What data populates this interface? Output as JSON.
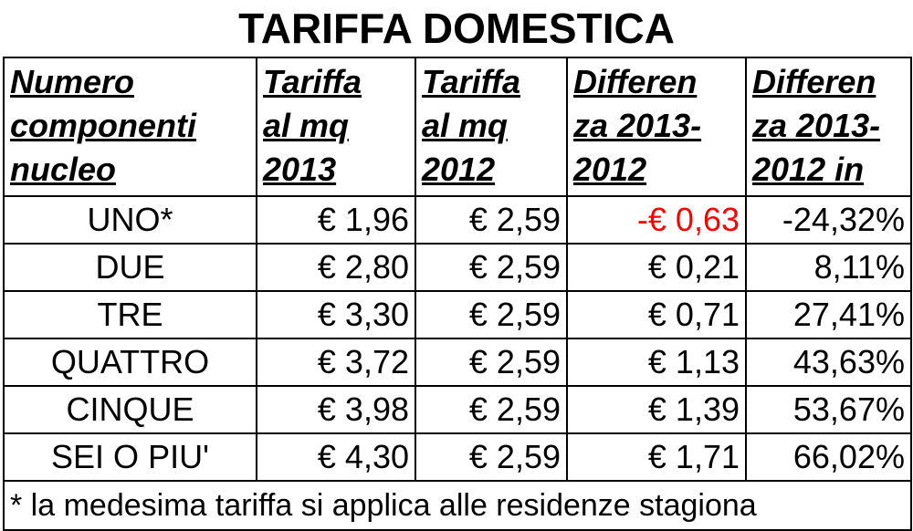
{
  "title": "TARIFFA DOMESTICA",
  "headers": [
    [
      "Numero",
      "componenti",
      "nucleo"
    ],
    [
      "Tariffa",
      "al mq",
      "2013"
    ],
    [
      "Tariffa",
      "al mq",
      "2012"
    ],
    [
      "Differen",
      "za 2013-",
      "2012"
    ],
    [
      "Differen",
      "za 2013-",
      "2012 in"
    ]
  ],
  "rows": [
    {
      "label": "UNO*",
      "t2013": "€ 1,96",
      "t2012": "€ 2,59",
      "diff": "-€ 0,63",
      "pct": "-24,32%",
      "negative": true
    },
    {
      "label": "DUE",
      "t2013": "€ 2,80",
      "t2012": "€ 2,59",
      "diff": "€ 0,21",
      "pct": "8,11%",
      "negative": false
    },
    {
      "label": "TRE",
      "t2013": "€ 3,30",
      "t2012": "€ 2,59",
      "diff": "€ 0,71",
      "pct": "27,41%",
      "negative": false
    },
    {
      "label": "QUATTRO",
      "t2013": "€ 3,72",
      "t2012": "€ 2,59",
      "diff": "€ 1,13",
      "pct": "43,63%",
      "negative": false
    },
    {
      "label": "CINQUE",
      "t2013": "€ 3,98",
      "t2012": "€ 2,59",
      "diff": "€ 1,39",
      "pct": "53,67%",
      "negative": false
    },
    {
      "label": "SEI O PIU'",
      "t2013": "€ 4,30",
      "t2012": "€ 2,59",
      "diff": "€ 1,71",
      "pct": "66,02%",
      "negative": false
    }
  ],
  "footnote": "* la medesima tariffa si applica alle residenze stagiona",
  "colors": {
    "negative": "#ff0000"
  }
}
